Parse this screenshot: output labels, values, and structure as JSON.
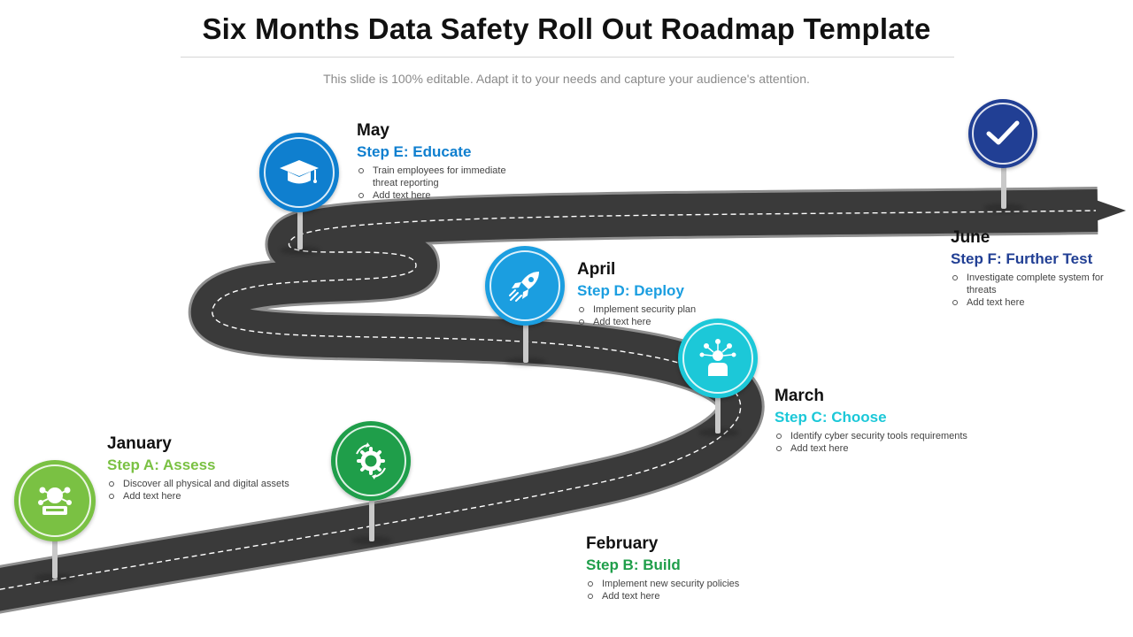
{
  "header": {
    "title": "Six Months Data Safety Roll Out Roadmap Template",
    "subtitle": "This slide is 100% editable. Adapt it to your needs and capture your audience's attention."
  },
  "colors": {
    "road": "#3a3a3a",
    "road_edge": "#9b9b9b",
    "dash": "#ffffff",
    "step_a": "#7ac143",
    "step_b": "#1f9e4a",
    "step_c": "#1cc8d8",
    "step_d": "#1b9ee0",
    "step_e": "#0f7fcf",
    "step_f": "#213f94"
  },
  "steps": [
    {
      "id": "a",
      "month": "January",
      "name": "Step A: Assess",
      "icon": "brain-network-icon",
      "bullets": [
        "Discover all physical and digital assets",
        "Add text here"
      ]
    },
    {
      "id": "b",
      "month": "February",
      "name": "Step B: Build",
      "icon": "gear-cycle-icon",
      "bullets": [
        "Implement new security policies",
        "Add text here"
      ]
    },
    {
      "id": "c",
      "month": "March",
      "name": "Step C: Choose",
      "icon": "person-network-icon",
      "bullets": [
        "Identify cyber security tools requirements",
        "Add text here"
      ]
    },
    {
      "id": "d",
      "month": "April",
      "name": "Step D: Deploy",
      "icon": "rocket-icon",
      "bullets": [
        "Implement security plan",
        "Add text here"
      ]
    },
    {
      "id": "e",
      "month": "May",
      "name": "Step E: Educate",
      "icon": "graduation-cap-icon",
      "bullets": [
        "Train employees for immediate threat reporting",
        "Add text here"
      ]
    },
    {
      "id": "f",
      "month": "June",
      "name": "Step F: Further Test",
      "icon": "checkmark-icon",
      "bullets": [
        "Investigate complete system for threats",
        "Add text here"
      ]
    }
  ]
}
